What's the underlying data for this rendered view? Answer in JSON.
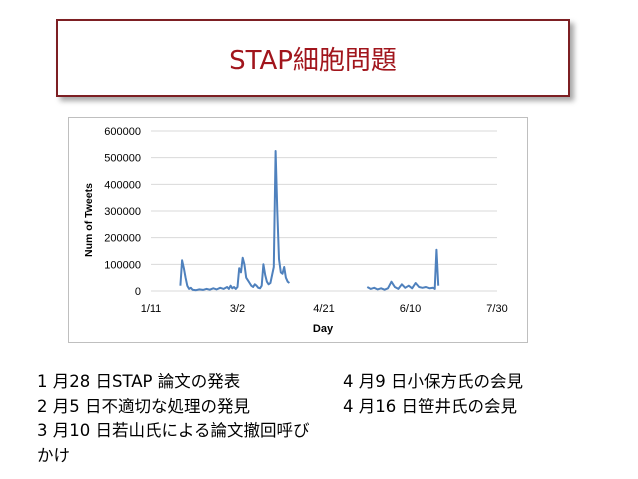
{
  "slide": {
    "title": "STAP細胞問題"
  },
  "notes": {
    "left": [
      "1 月28 日STAP 論文の発表",
      "2 月5 日不適切な処理の発見",
      "3 月10 日若山氏による論文撤回呼びかけ"
    ],
    "right": [
      "4 月9 日小保方氏の会見",
      "4 月16 日笹井氏の会見"
    ]
  },
  "chart_data": {
    "type": "line",
    "title": "",
    "xlabel": "Day",
    "ylabel": "Num of Tweets",
    "x_tick_labels": [
      "1/11",
      "3/2",
      "4/21",
      "6/10",
      "7/30"
    ],
    "x_ticks_day": [
      0,
      50,
      100,
      150,
      200
    ],
    "y_tick_labels": [
      "0",
      "100000",
      "200000",
      "300000",
      "400000",
      "500000",
      "600000"
    ],
    "ylim": [
      0,
      600000
    ],
    "xlim_day": [
      0,
      200
    ],
    "grid": "horizontal",
    "legend": "none",
    "color": "#4f81bd",
    "series": [
      {
        "segments": [
          [
            [
              17,
              20000
            ],
            [
              18,
              115000
            ],
            [
              19,
              85000
            ],
            [
              20,
              50000
            ],
            [
              21,
              20000
            ],
            [
              22,
              8000
            ],
            [
              23,
              12000
            ],
            [
              24,
              5000
            ],
            [
              26,
              3000
            ],
            [
              28,
              6000
            ],
            [
              30,
              4000
            ],
            [
              32,
              8000
            ],
            [
              34,
              5000
            ],
            [
              36,
              10000
            ],
            [
              38,
              6000
            ],
            [
              40,
              12000
            ],
            [
              42,
              8000
            ],
            [
              44,
              15000
            ],
            [
              45,
              8000
            ],
            [
              46,
              20000
            ],
            [
              47,
              10000
            ],
            [
              48,
              15000
            ],
            [
              49,
              8000
            ],
            [
              50,
              15000
            ],
            [
              51,
              85000
            ],
            [
              52,
              70000
            ],
            [
              53,
              125000
            ],
            [
              54,
              100000
            ],
            [
              55,
              50000
            ],
            [
              56,
              40000
            ],
            [
              57,
              30000
            ],
            [
              58,
              20000
            ],
            [
              59,
              15000
            ],
            [
              60,
              25000
            ],
            [
              61,
              20000
            ],
            [
              62,
              12000
            ],
            [
              63,
              10000
            ],
            [
              64,
              20000
            ],
            [
              65,
              100000
            ],
            [
              66,
              60000
            ],
            [
              67,
              35000
            ],
            [
              68,
              25000
            ],
            [
              69,
              30000
            ],
            [
              70,
              60000
            ],
            [
              71,
              90000
            ],
            [
              72,
              525000
            ],
            [
              73,
              300000
            ],
            [
              74,
              120000
            ],
            [
              75,
              70000
            ],
            [
              76,
              65000
            ],
            [
              77,
              90000
            ],
            [
              78,
              50000
            ],
            [
              79,
              35000
            ],
            [
              80,
              30000
            ]
          ],
          [
            [
              125,
              15000
            ],
            [
              127,
              8000
            ],
            [
              129,
              12000
            ],
            [
              131,
              6000
            ],
            [
              133,
              10000
            ],
            [
              135,
              5000
            ],
            [
              137,
              10000
            ],
            [
              139,
              35000
            ],
            [
              141,
              15000
            ],
            [
              143,
              8000
            ],
            [
              145,
              25000
            ],
            [
              147,
              12000
            ],
            [
              149,
              20000
            ],
            [
              151,
              10000
            ],
            [
              153,
              30000
            ],
            [
              155,
              15000
            ],
            [
              157,
              12000
            ],
            [
              159,
              15000
            ],
            [
              161,
              10000
            ],
            [
              163,
              12000
            ],
            [
              164,
              8000
            ],
            [
              165,
              155000
            ],
            [
              166,
              20000
            ]
          ]
        ]
      }
    ]
  }
}
